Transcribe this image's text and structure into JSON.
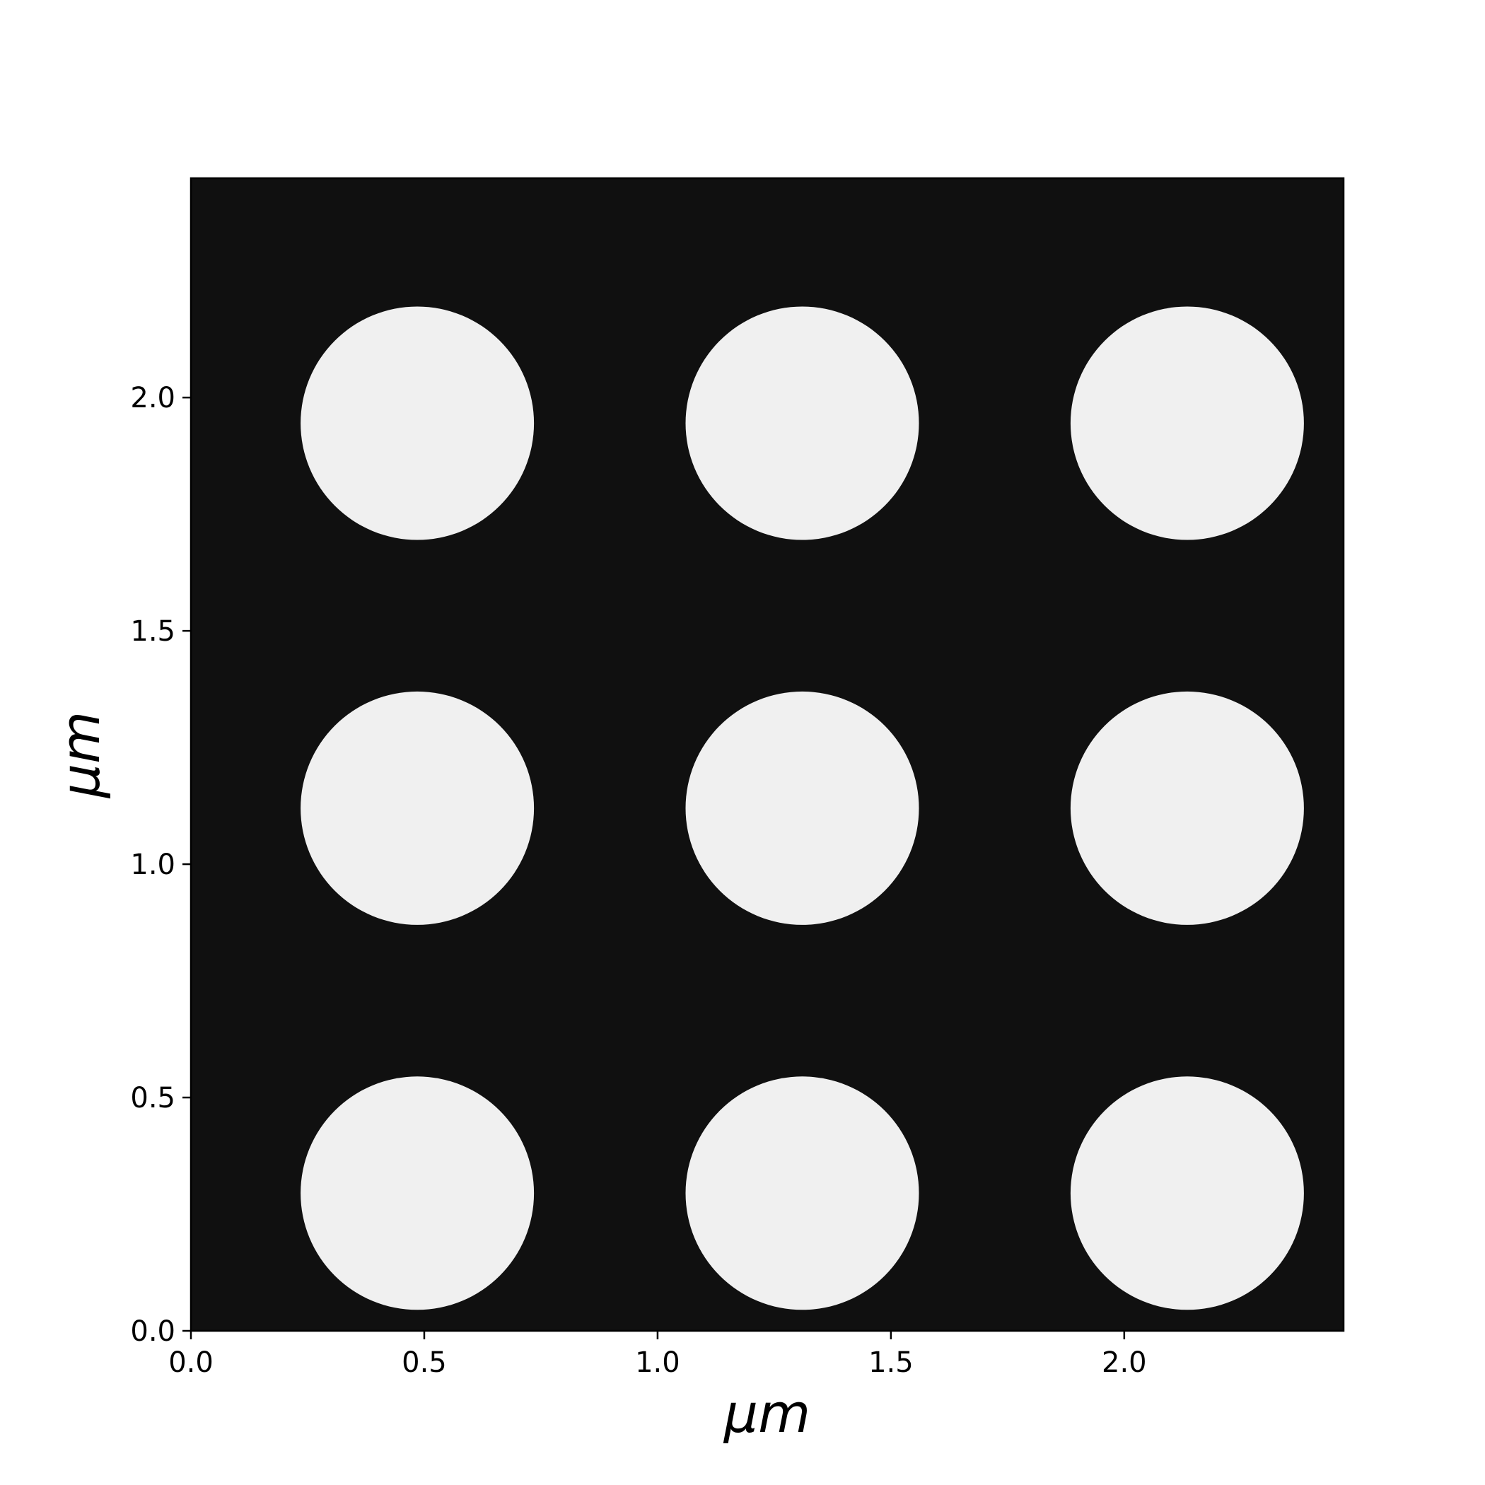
{
  "chart_data": {
    "type": "heatmap",
    "title": "",
    "xlabel": "μm",
    "ylabel": "μm",
    "xlim": [
      0.0,
      2.47
    ],
    "ylim": [
      0.0,
      2.47
    ],
    "xticks": [
      0.0,
      0.5,
      1.0,
      1.5,
      2.0
    ],
    "yticks": [
      0.0,
      0.5,
      1.0,
      1.5,
      2.0
    ],
    "xtick_labels": [
      "0.0",
      "0.5",
      "1.0",
      "1.5",
      "2.0"
    ],
    "ytick_labels": [
      "0.0",
      "0.5",
      "1.0",
      "1.5",
      "2.0"
    ],
    "grid": false,
    "background_color": "#101010",
    "feature_color": "#f0f0f0",
    "features": [
      {
        "shape": "circle",
        "cx": 0.485,
        "cy": 0.295,
        "r": 0.25
      },
      {
        "shape": "circle",
        "cx": 1.31,
        "cy": 0.295,
        "r": 0.25
      },
      {
        "shape": "circle",
        "cx": 2.135,
        "cy": 0.295,
        "r": 0.25
      },
      {
        "shape": "circle",
        "cx": 0.485,
        "cy": 1.12,
        "r": 0.25
      },
      {
        "shape": "circle",
        "cx": 1.31,
        "cy": 1.12,
        "r": 0.25
      },
      {
        "shape": "circle",
        "cx": 2.135,
        "cy": 1.12,
        "r": 0.25
      },
      {
        "shape": "circle",
        "cx": 0.485,
        "cy": 1.945,
        "r": 0.25
      },
      {
        "shape": "circle",
        "cx": 1.31,
        "cy": 1.945,
        "r": 0.25
      },
      {
        "shape": "circle",
        "cx": 2.135,
        "cy": 1.945,
        "r": 0.25
      }
    ]
  }
}
